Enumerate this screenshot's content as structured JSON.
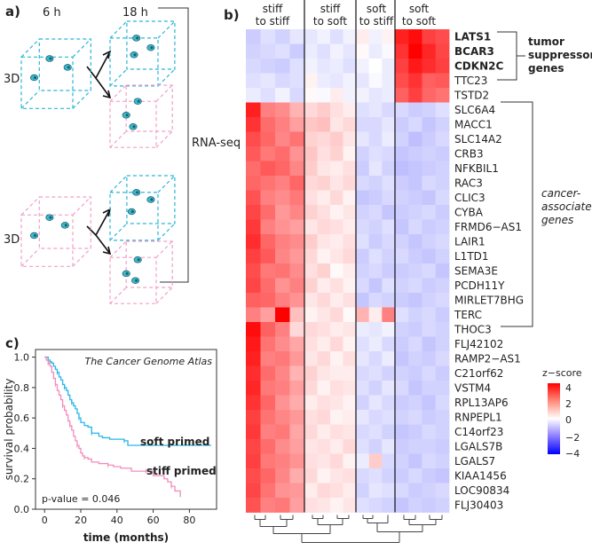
{
  "panel_a": {
    "label": "a)",
    "time_6h": "6 h",
    "time_18h": "18 h",
    "dim_top": "3D",
    "dim_bottom": "3D",
    "rnaseq": "RNA-seq",
    "colors": {
      "stiff": "#29b6d8",
      "soft": "#f2a0c8"
    }
  },
  "panel_b": {
    "label": "b)",
    "groups": [
      {
        "line1": "stiff",
        "line2": "to stiff"
      },
      {
        "line1": "stiff",
        "line2": "to soft"
      },
      {
        "line1": "soft",
        "line2": "to stiff"
      },
      {
        "line1": "soft",
        "line2": "to soft"
      }
    ],
    "genes": [
      "LATS1",
      "BCAR3",
      "CDKN2C",
      "TTC23",
      "TSTD2",
      "SLC6A4",
      "MACC1",
      "SLC14A2",
      "CRB3",
      "NFKBIL1",
      "RAC3",
      "CLIC3",
      "CYBA",
      "FRMD6−AS1",
      "LAIR1",
      "L1TD1",
      "SEMA3E",
      "PCDH11Y",
      "MIRLET7BHG",
      "TERC",
      "THOC3",
      "FLJ42102",
      "RAMP2−AS1",
      "C21orf62",
      "VSTM4",
      "RPL13AP6",
      "RNPEPL1",
      "C14orf23",
      "LGALS7B",
      "LGALS7",
      "KIAA1456",
      "LOC90834",
      "FLJ30403"
    ],
    "bold_genes": [
      "LATS1",
      "BCAR3",
      "CDKN2C"
    ],
    "annot_tumor": {
      "line1": "tumor",
      "line2": "suppressor",
      "line3": "genes"
    },
    "annot_cancer": {
      "line1": "cancer-",
      "line2": "associated",
      "line3": "genes"
    },
    "zscore": {
      "title": "z−score",
      "ticks": [
        "4",
        "2",
        "0",
        "−2",
        "−4"
      ]
    },
    "heatmap": {
      "columns_per_group": [
        4,
        4,
        3,
        4
      ],
      "profiles": [
        [
          -0.8,
          -0.5,
          -0.7,
          -0.4,
          -0.4,
          -0.2,
          -0.5,
          -0.2,
          0.3,
          -0.2,
          0.2,
          3.5,
          3.8,
          3.0,
          2.8
        ],
        [
          -0.7,
          -0.6,
          -0.5,
          -0.8,
          -0.3,
          -0.5,
          -0.2,
          -0.4,
          0.1,
          -0.3,
          -0.1,
          3.2,
          4.0,
          3.4,
          2.9
        ],
        [
          -0.6,
          -0.7,
          -0.8,
          -0.5,
          -0.2,
          -0.4,
          -0.3,
          -0.5,
          -0.2,
          0.0,
          -0.3,
          3.0,
          3.6,
          3.3,
          3.0
        ],
        [
          -0.5,
          -0.4,
          -0.6,
          -0.5,
          0.2,
          -0.3,
          -0.4,
          -0.2,
          -0.4,
          -0.1,
          -0.3,
          2.8,
          3.2,
          2.5,
          2.6
        ],
        [
          -0.3,
          -0.5,
          -0.2,
          -0.6,
          0.1,
          -0.1,
          0.3,
          -0.2,
          -0.2,
          -0.4,
          -0.3,
          2.5,
          3.0,
          2.4,
          2.2
        ],
        [
          3.5,
          2.0,
          1.8,
          1.2,
          0.6,
          0.8,
          0.5,
          0.3,
          -0.5,
          -0.4,
          -0.6,
          -0.6,
          -0.8,
          -0.7,
          -0.5
        ],
        [
          3.2,
          2.3,
          2.0,
          1.5,
          0.9,
          1.0,
          0.4,
          0.6,
          -0.6,
          -0.6,
          -0.4,
          -0.8,
          -0.6,
          -0.9,
          -0.7
        ],
        [
          2.8,
          2.4,
          1.9,
          2.2,
          0.7,
          0.6,
          0.8,
          0.4,
          -0.4,
          -0.6,
          -0.3,
          -0.7,
          -1.0,
          -0.8,
          -0.6
        ],
        [
          2.6,
          2.1,
          2.3,
          1.7,
          0.9,
          0.5,
          0.7,
          0.2,
          -0.7,
          -0.5,
          -0.6,
          -0.9,
          -0.8,
          -0.7,
          -0.8
        ],
        [
          2.3,
          2.6,
          2.4,
          1.9,
          0.8,
          0.4,
          0.3,
          0.5,
          -0.8,
          -0.4,
          -0.7,
          -1.0,
          -0.9,
          -0.8,
          -0.7
        ],
        [
          2.4,
          2.2,
          2.0,
          2.4,
          0.6,
          0.7,
          0.4,
          0.6,
          -0.6,
          -0.7,
          -0.5,
          -0.8,
          -0.9,
          -0.6,
          -0.7
        ],
        [
          2.7,
          2.0,
          1.8,
          2.1,
          0.5,
          0.3,
          0.6,
          0.2,
          -0.9,
          -0.8,
          -0.6,
          -0.7,
          -0.8,
          -0.9,
          -0.6
        ],
        [
          2.9,
          2.3,
          1.6,
          1.9,
          0.7,
          0.5,
          0.2,
          0.4,
          -0.7,
          -0.6,
          -0.9,
          -0.8,
          -0.7,
          -0.6,
          -0.8
        ],
        [
          3.1,
          2.0,
          1.7,
          1.5,
          0.4,
          0.6,
          0.5,
          0.3,
          -0.6,
          -0.7,
          -0.5,
          -0.9,
          -0.6,
          -0.8,
          -0.7
        ],
        [
          3.3,
          2.4,
          2.0,
          1.8,
          0.8,
          0.4,
          0.3,
          0.5,
          -0.5,
          -0.8,
          -0.6,
          -0.7,
          -0.9,
          -0.7,
          -0.6
        ],
        [
          3.0,
          2.6,
          1.9,
          1.6,
          0.6,
          0.2,
          0.4,
          0.6,
          -0.8,
          -0.5,
          -0.7,
          -0.6,
          -0.8,
          -0.9,
          -0.7
        ],
        [
          2.8,
          2.1,
          2.2,
          1.8,
          0.5,
          0.7,
          0.1,
          0.3,
          -0.7,
          -0.6,
          -0.8,
          -0.8,
          -0.7,
          -0.6,
          -0.9
        ],
        [
          2.9,
          2.3,
          1.7,
          2.0,
          0.7,
          0.3,
          0.5,
          0.2,
          -0.6,
          -0.9,
          -0.5,
          -0.7,
          -0.6,
          -0.8,
          -0.7
        ],
        [
          2.5,
          2.4,
          2.0,
          1.7,
          0.4,
          0.6,
          0.3,
          0.5,
          -0.9,
          -0.6,
          -0.7,
          -0.8,
          -0.9,
          -0.7,
          -0.6
        ],
        [
          2.0,
          1.5,
          4.0,
          1.0,
          0.2,
          0.4,
          0.6,
          0.1,
          1.2,
          0.3,
          2.0,
          -0.5,
          -0.7,
          -0.6,
          -0.8
        ],
        [
          3.8,
          2.5,
          2.0,
          0.6,
          0.6,
          0.5,
          0.3,
          0.4,
          -0.3,
          -0.4,
          -0.2,
          -0.7,
          -0.8,
          -0.6,
          -0.7
        ],
        [
          3.6,
          2.2,
          1.8,
          1.4,
          0.5,
          0.3,
          0.6,
          0.2,
          -0.5,
          -0.3,
          -0.6,
          -0.8,
          -0.6,
          -0.9,
          -0.7
        ],
        [
          3.5,
          2.0,
          2.1,
          1.6,
          0.4,
          0.6,
          0.2,
          0.5,
          -0.4,
          -0.6,
          -0.3,
          -0.9,
          -0.7,
          -0.8,
          -0.6
        ],
        [
          3.3,
          2.3,
          1.9,
          1.2,
          0.7,
          0.4,
          0.3,
          0.3,
          -0.6,
          -0.5,
          -0.7,
          -0.7,
          -0.8,
          -0.6,
          -0.8
        ],
        [
          3.4,
          2.1,
          2.0,
          1.5,
          0.6,
          0.2,
          0.5,
          0.4,
          -0.5,
          -0.7,
          -0.4,
          -0.6,
          -0.9,
          -0.7,
          -0.7
        ],
        [
          3.2,
          2.4,
          1.7,
          1.3,
          0.3,
          0.5,
          0.4,
          0.2,
          -0.7,
          -0.4,
          -0.6,
          -0.8,
          -0.7,
          -0.9,
          -0.6
        ],
        [
          3.0,
          2.2,
          1.9,
          1.6,
          0.5,
          0.6,
          0.2,
          0.3,
          -0.4,
          -0.6,
          -0.5,
          -0.7,
          -0.6,
          -0.8,
          -0.7
        ],
        [
          3.1,
          2.0,
          2.1,
          1.4,
          0.6,
          0.3,
          0.5,
          0.4,
          -0.6,
          -0.5,
          -0.7,
          -0.9,
          -0.8,
          -0.6,
          -0.7
        ],
        [
          2.9,
          2.3,
          1.8,
          1.5,
          0.4,
          0.5,
          0.3,
          0.6,
          -0.5,
          -0.7,
          -0.4,
          -0.8,
          -0.7,
          -0.7,
          -0.8
        ],
        [
          3.0,
          2.1,
          2.0,
          1.7,
          0.5,
          0.4,
          0.6,
          0.2,
          -0.3,
          0.8,
          -0.6,
          -0.7,
          -0.9,
          -0.6,
          -0.7
        ],
        [
          2.8,
          2.4,
          1.9,
          1.3,
          0.6,
          0.2,
          0.4,
          0.5,
          -0.6,
          -0.5,
          -0.7,
          -0.8,
          -0.6,
          -0.8,
          -0.9
        ],
        [
          2.9,
          2.2,
          1.7,
          1.6,
          0.3,
          0.6,
          0.5,
          0.3,
          -0.7,
          -0.4,
          -0.5,
          -0.6,
          -0.8,
          -0.7,
          -0.6
        ],
        [
          2.7,
          2.0,
          2.1,
          1.5,
          0.5,
          0.4,
          0.2,
          0.4,
          -0.5,
          -0.6,
          -0.7,
          -0.9,
          -0.7,
          -0.8,
          -0.7
        ]
      ]
    }
  },
  "panel_c": {
    "label": "c)",
    "title": "The Cancer Genome Atlas",
    "pvalue": "p-value = 0.046",
    "legend_soft": "soft primed",
    "legend_stiff": "stiff primed",
    "colors": {
      "soft": "#29b6e8",
      "stiff": "#f28cbc"
    }
  },
  "chart_data": {
    "type": "line",
    "title": "The Cancer Genome Atlas",
    "xlabel": "time (months)",
    "ylabel": "survival probability",
    "xlim": [
      -5,
      95
    ],
    "ylim": [
      0,
      1.05
    ],
    "xticks": [
      0,
      20,
      40,
      60,
      80
    ],
    "yticks": [
      0.0,
      0.2,
      0.4,
      0.6,
      0.8,
      1.0
    ],
    "series": [
      {
        "name": "soft primed",
        "color": "#29b6e8",
        "x": [
          0,
          2,
          3,
          4,
          5,
          6,
          7,
          8,
          9,
          10,
          11,
          12,
          13,
          14,
          15,
          16,
          17,
          18,
          19,
          20,
          22,
          24,
          26,
          30,
          32,
          36,
          44,
          46,
          92
        ],
        "y": [
          1.0,
          0.98,
          0.97,
          0.96,
          0.94,
          0.92,
          0.9,
          0.87,
          0.85,
          0.82,
          0.8,
          0.78,
          0.75,
          0.72,
          0.7,
          0.68,
          0.66,
          0.63,
          0.6,
          0.57,
          0.55,
          0.54,
          0.5,
          0.48,
          0.47,
          0.46,
          0.45,
          0.42,
          0.42
        ]
      },
      {
        "name": "stiff primed",
        "color": "#f28cbc",
        "x": [
          0,
          1,
          2,
          3,
          4,
          5,
          6,
          7,
          8,
          9,
          10,
          11,
          12,
          13,
          14,
          15,
          16,
          17,
          18,
          19,
          20,
          21,
          22,
          24,
          26,
          30,
          35,
          38,
          42,
          48,
          56,
          60,
          66,
          68,
          70,
          72,
          75
        ],
        "y": [
          1.0,
          0.98,
          0.96,
          0.94,
          0.9,
          0.86,
          0.82,
          0.78,
          0.75,
          0.72,
          0.68,
          0.65,
          0.62,
          0.58,
          0.55,
          0.52,
          0.48,
          0.45,
          0.42,
          0.4,
          0.37,
          0.35,
          0.34,
          0.33,
          0.31,
          0.3,
          0.29,
          0.28,
          0.27,
          0.25,
          0.25,
          0.22,
          0.2,
          0.18,
          0.15,
          0.12,
          0.08
        ]
      }
    ]
  }
}
